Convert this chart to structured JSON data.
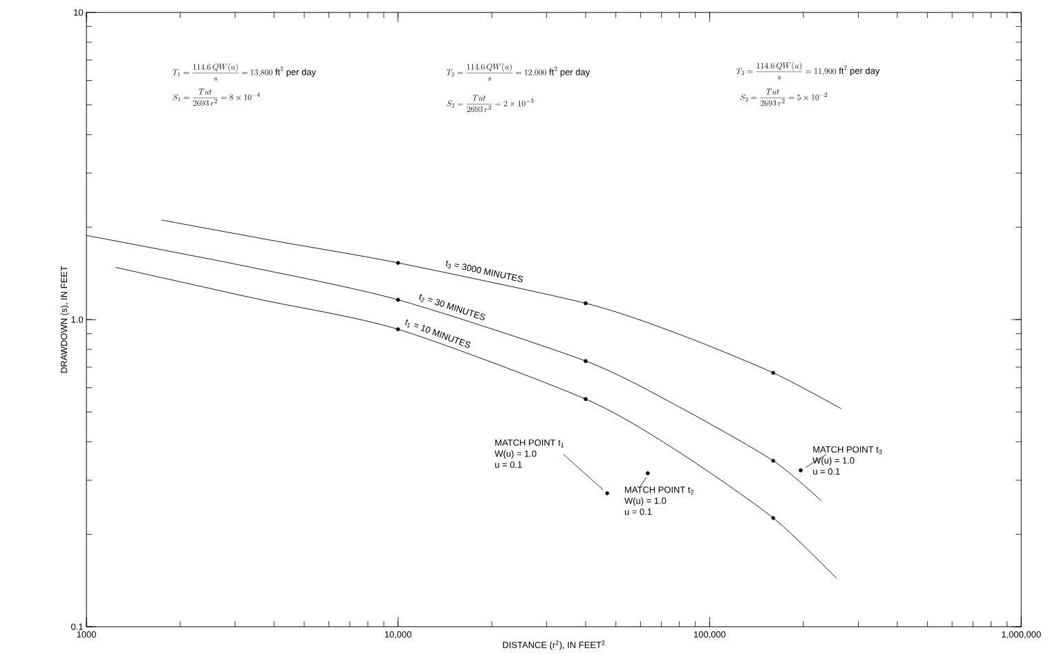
{
  "chart_data": {
    "type": "line",
    "xlabel": "DISTANCE (r$^{2}$), IN FEET$^{2}$",
    "ylabel": "DRAWDOWN (s), IN FEET",
    "log": "xy",
    "xlim": [
      1000,
      1000000
    ],
    "ylim": [
      0.1,
      10
    ],
    "xticks": [
      {
        "value": 1000,
        "label": "1000"
      },
      {
        "value": 10000,
        "label": "10,000"
      },
      {
        "value": 100000,
        "label": "100,000"
      },
      {
        "value": 1000000,
        "label": "1,000,000"
      }
    ],
    "yticks": [
      {
        "value": 0.1,
        "label": "0.1"
      },
      {
        "value": 1,
        "label": "1.0"
      },
      10
    ],
    "line_style": "solid",
    "series": [
      {
        "name": "t$_{3}$ = 3000 MINUTES",
        "color": "#000000",
        "marker": "none",
        "x": [
          1740,
          4070,
          10000,
          40000,
          78900,
          160000,
          265000
        ],
        "values": [
          2.11,
          1.8,
          1.53,
          1.13,
          0.9,
          0.671,
          0.512
        ]
      },
      {
        "name": "t$_{2}$ = 30 MINUTES",
        "color": "#000000",
        "marker": "none",
        "x": [
          1000,
          3160,
          10000,
          40000,
          78900,
          160000,
          228000
        ],
        "values": [
          1.88,
          1.5,
          1.16,
          0.733,
          0.523,
          0.347,
          0.257
        ]
      },
      {
        "name": "t$_{1}$ = 10 MINUTES",
        "color": "#000000",
        "marker": "none",
        "x": [
          1240,
          3500,
          10000,
          40000,
          78900,
          160000,
          255000
        ],
        "values": [
          1.48,
          1.17,
          0.93,
          0.551,
          0.373,
          0.226,
          0.144
        ]
      },
      {
        "type": "scatter",
        "color": "#000000",
        "marker": "circle",
        "x": [
          10000,
          40000,
          160000,
          10000,
          40000,
          160000,
          10000,
          40000,
          160000
        ],
        "values": [
          1.53,
          1.13,
          0.671,
          1.16,
          0.733,
          0.347,
          0.93,
          0.551,
          0.226
        ]
      },
      {
        "type": "scatter",
        "color": "#000000",
        "marker": "circle",
        "x": [
          46900,
          63300,
          196000
        ],
        "values": [
          0.272,
          0.316,
          0.323
        ]
      }
    ],
    "annotations": [
      "T_{1} = \\frac{114.6\\,QW(u)}{s} = 13{,}800\\ \\mathrm{ft}^{2}\\ \\mathrm{per\\ day}",
      "S_{1} = \\frac{Tut}{2693\\,r^{2}} = 8\\times 10^{-4}",
      "T_{2} = \\frac{114.6\\,QW(u)}{s} = 12{,}000\\ \\mathrm{ft}^{2}\\ \\mathrm{per\\ day}",
      "S_{2} = \\frac{Tut}{2693\\,r^{2}} = 2\\times 10^{-3}",
      "T_{3} = \\frac{114.6\\,QW(u)}{s} = 11{,}900\\ \\mathrm{ft}^{2}\\ \\mathrm{per\\ day}",
      "S_{3} = \\frac{Tut}{2693\\,r^{2}} = 5\\times 10^{-2}",
      {
        "text": "MATCH POINT t$_{1}$",
        "x": 46900,
        "y": 0.272
      },
      "W(u) = 1.0",
      "u = 0.1",
      {
        "text": "MATCH POINT t$_{2}$",
        "x": 63300,
        "y": 0.316
      },
      "W(u) = 1.0",
      "u = 0.1",
      {
        "text": "MATCH POINT t$_{3}$",
        "x": 196000,
        "y": 0.323
      },
      "W(u) = 1.0",
      "u = 0.1"
    ]
  }
}
